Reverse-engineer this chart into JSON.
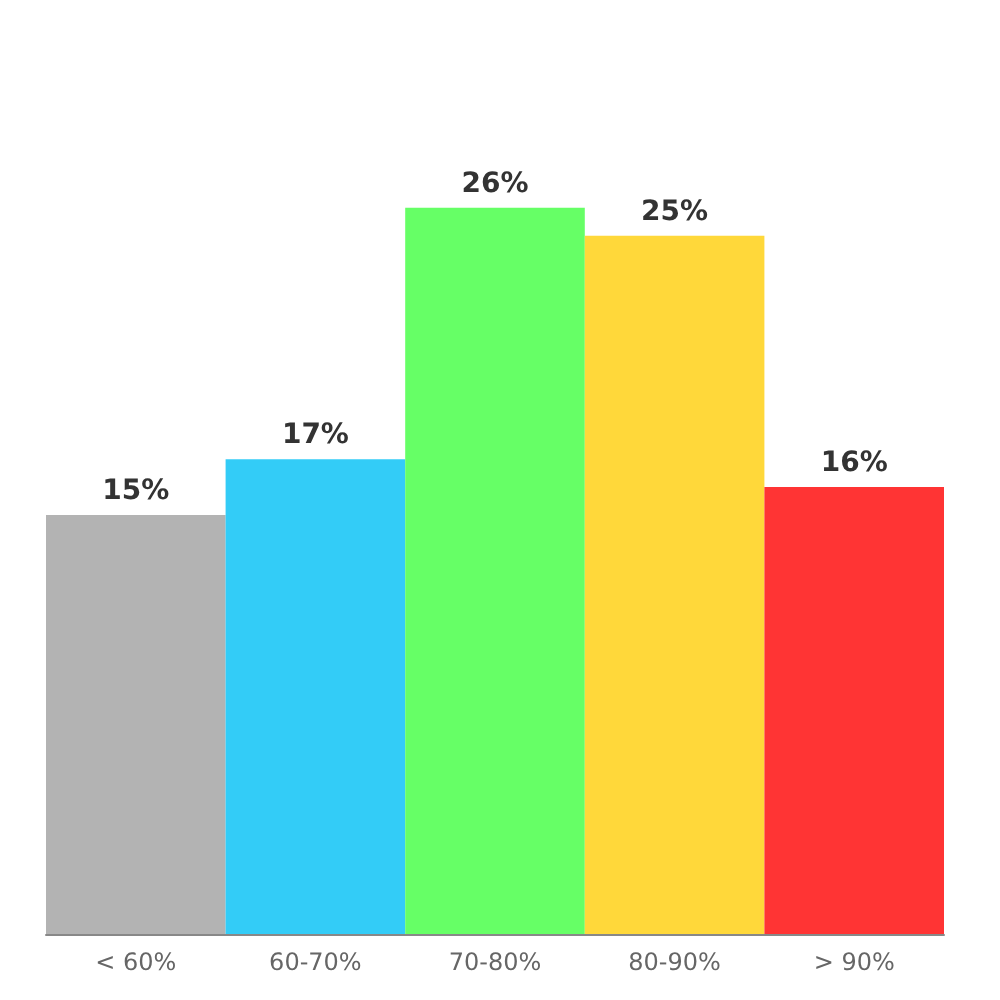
{
  "chart_data": {
    "type": "bar",
    "categories": [
      "< 60%",
      "60-70%",
      "70-80%",
      "80-90%",
      "> 90%"
    ],
    "values": [
      15,
      17,
      26,
      25,
      16
    ],
    "colors": [
      "#b3b3b3",
      "#33ccf7",
      "#66ff66",
      "#ffd83a",
      "#ff3434"
    ],
    "value_labels": [
      "15%",
      "17%",
      "26%",
      "25%",
      "16%"
    ]
  }
}
